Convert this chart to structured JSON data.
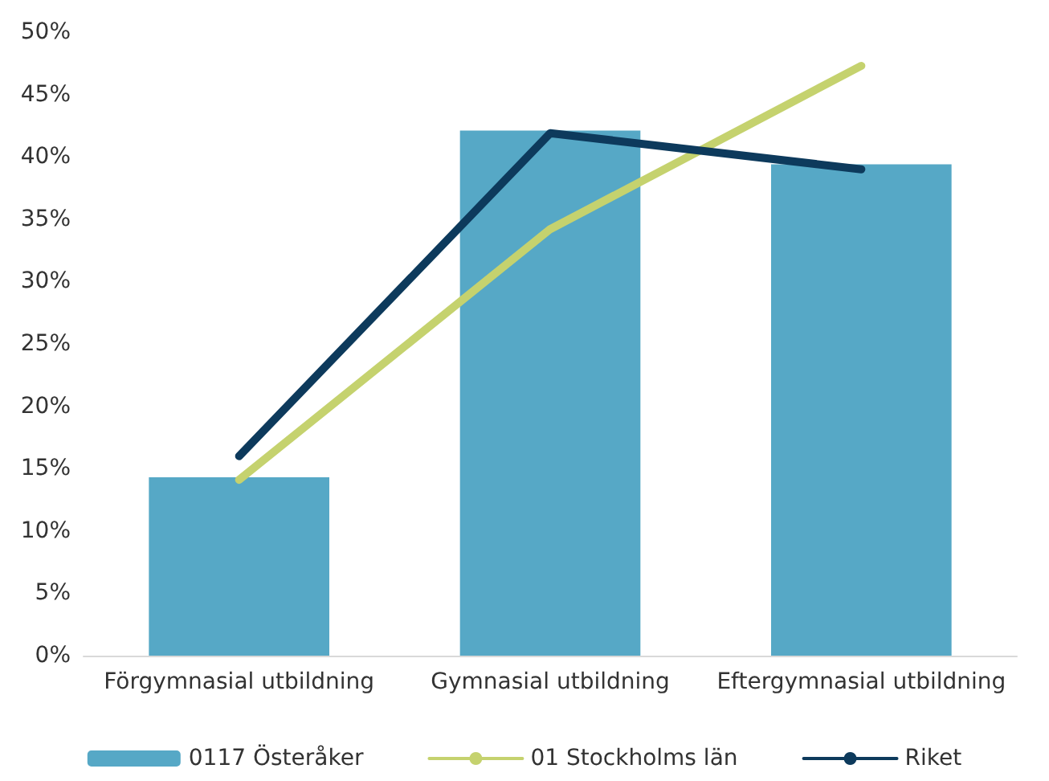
{
  "chart_data": {
    "type": "bar",
    "categories": [
      "Förgymnasial utbildning",
      "Gymnasial utbildning",
      "Eftergymnasial utbildning"
    ],
    "series": [
      {
        "name": "0117 Österåker",
        "color": "#56a8c6",
        "values": [
          14.3,
          42.1,
          39.4
        ]
      },
      {
        "name": "01 Stockholms län",
        "type": "line",
        "color": "#c5d26e",
        "values": [
          14.1,
          34.2,
          47.3
        ]
      },
      {
        "name": "Riket",
        "type": "line",
        "color": "#0d3a5c",
        "values": [
          16.0,
          41.9,
          39.0
        ]
      }
    ],
    "ylim": [
      0,
      50
    ],
    "yticks": [
      {
        "value": 0,
        "label": "0%"
      },
      {
        "value": 5,
        "label": "5%"
      },
      {
        "value": 10,
        "label": "10%"
      },
      {
        "value": 15,
        "label": "15%"
      },
      {
        "value": 20,
        "label": "20%"
      },
      {
        "value": 25,
        "label": "25%"
      },
      {
        "value": 30,
        "label": "30%"
      },
      {
        "value": 35,
        "label": "35%"
      },
      {
        "value": 40,
        "label": "40%"
      },
      {
        "value": 45,
        "label": "45%"
      },
      {
        "value": 50,
        "label": "50%"
      }
    ],
    "grid": false,
    "legend": "bottom",
    "marker": "none",
    "line_style": "solid"
  }
}
